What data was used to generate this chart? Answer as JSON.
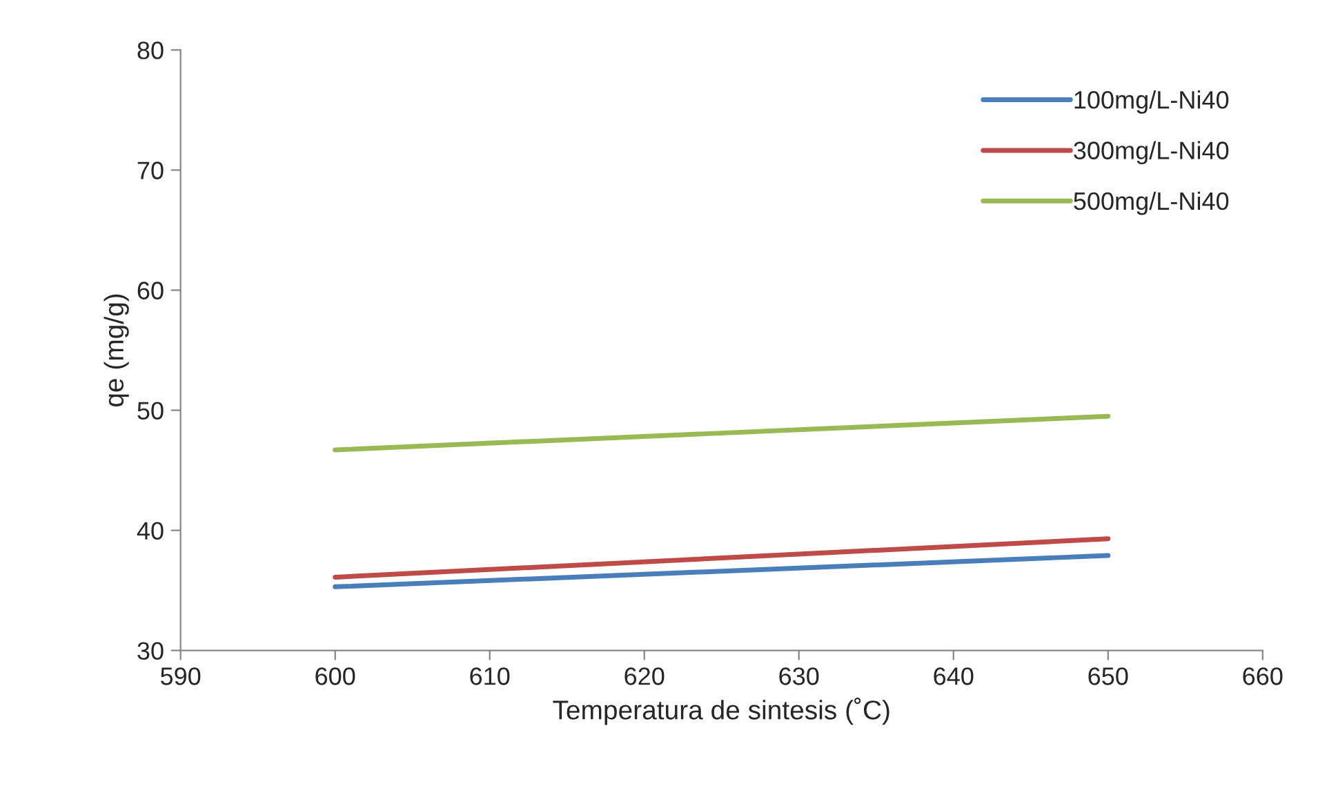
{
  "chart_data": {
    "type": "line",
    "xlabel": "Temperatura de sintesis (˚C)",
    "ylabel": "qe (mg/g)",
    "x": [
      600,
      650
    ],
    "series": [
      {
        "name": "100mg/L-Ni40",
        "color": "#4a7ebb",
        "values": [
          35.3,
          37.9
        ]
      },
      {
        "name": "300mg/L-Ni40",
        "color": "#be4b48",
        "values": [
          36.1,
          39.3
        ]
      },
      {
        "name": "500mg/L-Ni40",
        "color": "#98b954",
        "values": [
          46.7,
          49.5
        ]
      }
    ],
    "xlim": [
      590,
      660
    ],
    "xticks": [
      590,
      600,
      610,
      620,
      630,
      640,
      650,
      660
    ],
    "ylim": [
      30,
      80
    ],
    "yticks": [
      30,
      40,
      50,
      60,
      70,
      80
    ],
    "grid": false,
    "legend": "top right",
    "marker": "none",
    "line_style": "solid"
  }
}
